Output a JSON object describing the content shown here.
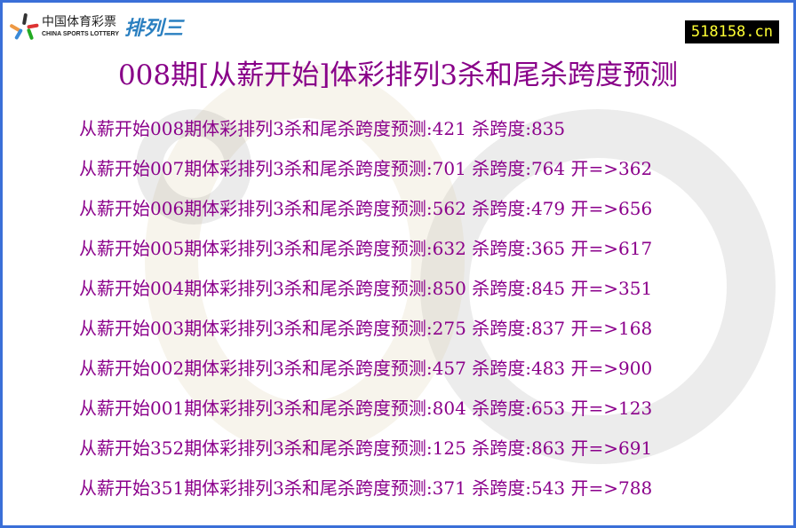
{
  "logo": {
    "cn": "中国体育彩票",
    "en": "CHINA SPORTS LOTTERY",
    "brand": "排列三"
  },
  "site_badge": "518158.cn",
  "title": "008期[从薪开始]体彩排列3杀和尾杀跨度预测",
  "labels": {
    "prefix": "从薪开始",
    "mid": "期体彩排列3杀和尾杀跨度预测:",
    "span": " 杀跨度:",
    "open": " 开=>"
  },
  "rows": [
    {
      "issue": "008",
      "kill": "421",
      "span": "835",
      "open": ""
    },
    {
      "issue": "007",
      "kill": "701",
      "span": "764",
      "open": "362"
    },
    {
      "issue": "006",
      "kill": "562",
      "span": "479",
      "open": "656"
    },
    {
      "issue": "005",
      "kill": "632",
      "span": "365",
      "open": "617"
    },
    {
      "issue": "004",
      "kill": "850",
      "span": "845",
      "open": "351"
    },
    {
      "issue": "003",
      "kill": "275",
      "span": "837",
      "open": "168"
    },
    {
      "issue": "002",
      "kill": "457",
      "span": "483",
      "open": "900"
    },
    {
      "issue": "001",
      "kill": "804",
      "span": "653",
      "open": "123"
    },
    {
      "issue": "352",
      "kill": "125",
      "span": "863",
      "open": "691"
    },
    {
      "issue": "351",
      "kill": "371",
      "span": "543",
      "open": "788"
    }
  ],
  "colors": {
    "border": "#3a6fd8",
    "text": "#8b008b",
    "badge_bg": "#000000",
    "badge_text": "#ffff33"
  }
}
